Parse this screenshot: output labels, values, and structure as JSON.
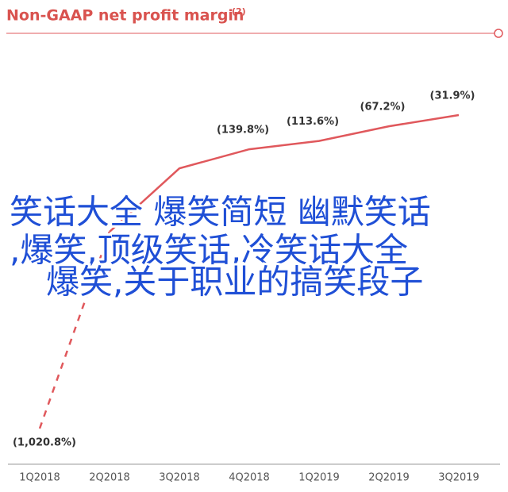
{
  "chart_data": {
    "type": "line",
    "title": "Non-GAAP net profit margin",
    "title_note": "(2)",
    "categories": [
      "1Q2018",
      "2Q2018",
      "3Q2018",
      "4Q2018",
      "1Q2019",
      "2Q2019",
      "3Q2019"
    ],
    "values": [
      -1020.8,
      -400.1,
      -200,
      -139.8,
      -113.6,
      -67.2,
      -31.9
    ],
    "value_labels": [
      "(1,020.8%)",
      null,
      null,
      "(139.8%)",
      "(113.6%)",
      "(67.2%)",
      "(31.9%)"
    ],
    "color": "#e0585c"
  },
  "overlay_text": [
    "笑话大全 爆笑简短 幽默笑话",
    ",爆笑,顶级笑话,冷笑话大全",
    "爆笑,关于职业的搞笑段子"
  ]
}
